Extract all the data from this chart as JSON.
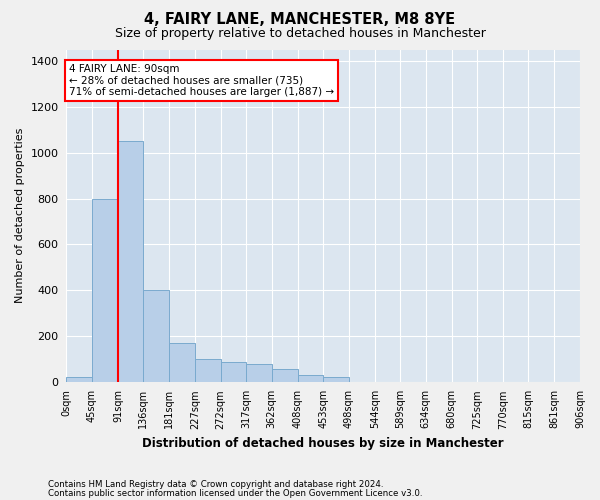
{
  "title": "4, FAIRY LANE, MANCHESTER, M8 8YE",
  "subtitle": "Size of property relative to detached houses in Manchester",
  "xlabel": "Distribution of detached houses by size in Manchester",
  "ylabel": "Number of detached properties",
  "footer_line1": "Contains HM Land Registry data © Crown copyright and database right 2024.",
  "footer_line2": "Contains public sector information licensed under the Open Government Licence v3.0.",
  "bar_color": "#b8cfe8",
  "bar_edge_color": "#7aaace",
  "background_color": "#dce6f0",
  "grid_color": "#ffffff",
  "fig_background": "#f0f0f0",
  "red_line_x": 91,
  "annotation_text": "4 FAIRY LANE: 90sqm\n← 28% of detached houses are smaller (735)\n71% of semi-detached houses are larger (1,887) →",
  "bin_edges": [
    0,
    45,
    91,
    136,
    181,
    227,
    272,
    317,
    362,
    408,
    453,
    498,
    544,
    589,
    634,
    680,
    725,
    770,
    815,
    861,
    906
  ],
  "bar_heights": [
    20,
    800,
    1050,
    400,
    170,
    100,
    85,
    75,
    55,
    30,
    20,
    0,
    0,
    0,
    0,
    0,
    0,
    0,
    0,
    0
  ],
  "ylim": [
    0,
    1450
  ],
  "yticks": [
    0,
    200,
    400,
    600,
    800,
    1000,
    1200,
    1400
  ]
}
